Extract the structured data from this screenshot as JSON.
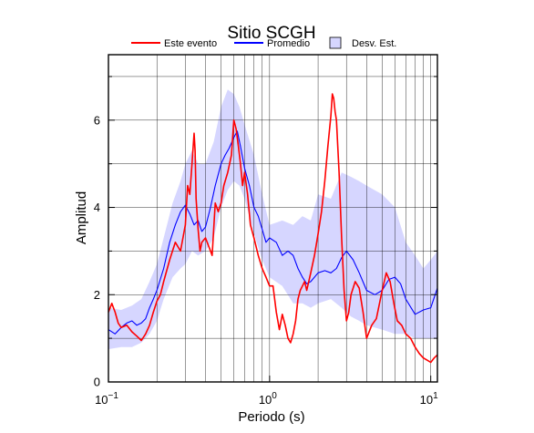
{
  "chart_data": {
    "type": "line",
    "title": "Sitio SCGH",
    "xlabel": "Periodo (s)",
    "ylabel": "Amplitud",
    "x_scale": "log",
    "xlim": [
      0.1,
      11
    ],
    "ylim": [
      0,
      7.5
    ],
    "x_ticks": [
      0.1,
      1,
      10
    ],
    "x_tick_labels": [
      {
        "base": "10",
        "exp": "−1"
      },
      {
        "base": "10",
        "exp": "0"
      },
      {
        "base": "10",
        "exp": "1"
      }
    ],
    "y_ticks": [
      0,
      2,
      4,
      6
    ],
    "y_tick_labels": [
      "0",
      "2",
      "4",
      "6"
    ],
    "grid": true,
    "legend_position": "top",
    "legend": [
      {
        "label": "Este evento",
        "kind": "line",
        "color": "#ff0000"
      },
      {
        "label": "Promedio",
        "kind": "line",
        "color": "#0000ff"
      },
      {
        "label": "Desv. Est.",
        "kind": "patch",
        "color": "#d6d6ff"
      }
    ],
    "band": {
      "name": "Desv. Est.",
      "color": "#d6d6ff",
      "x": [
        0.1,
        0.12,
        0.14,
        0.16,
        0.18,
        0.2,
        0.22,
        0.25,
        0.28,
        0.3,
        0.33,
        0.36,
        0.4,
        0.45,
        0.5,
        0.55,
        0.6,
        0.65,
        0.7,
        0.8,
        0.9,
        1.0,
        1.2,
        1.4,
        1.6,
        1.8,
        2.0,
        2.4,
        2.8,
        3.2,
        3.6,
        4.0,
        5.0,
        6.0,
        7.0,
        8.0,
        9.0,
        10.0,
        11.0
      ],
      "upper": [
        1.7,
        1.65,
        1.75,
        1.9,
        2.3,
        2.7,
        3.3,
        4.1,
        4.6,
        5.0,
        5.3,
        5.0,
        5.0,
        5.5,
        6.3,
        6.7,
        6.6,
        6.3,
        5.9,
        5.2,
        4.3,
        3.6,
        3.7,
        3.6,
        3.8,
        3.7,
        4.3,
        4.2,
        4.8,
        4.7,
        4.6,
        4.5,
        4.3,
        4.0,
        3.2,
        2.9,
        2.6,
        2.8,
        3.0
      ],
      "lower": [
        0.75,
        0.8,
        0.8,
        0.9,
        1.1,
        1.4,
        1.9,
        2.4,
        2.6,
        2.7,
        3.0,
        2.9,
        3.0,
        3.3,
        4.0,
        4.4,
        4.6,
        4.5,
        4.2,
        3.4,
        2.8,
        2.4,
        2.2,
        1.8,
        1.8,
        1.7,
        1.8,
        1.9,
        1.7,
        1.5,
        1.4,
        1.3,
        1.2,
        1.1,
        1.1,
        1.0,
        1.0,
        1.0,
        1.0
      ]
    },
    "series": [
      {
        "name": "Promedio",
        "color": "#0000ff",
        "x": [
          0.1,
          0.11,
          0.12,
          0.13,
          0.14,
          0.15,
          0.16,
          0.17,
          0.18,
          0.19,
          0.2,
          0.22,
          0.24,
          0.26,
          0.28,
          0.3,
          0.32,
          0.34,
          0.36,
          0.38,
          0.4,
          0.43,
          0.46,
          0.5,
          0.53,
          0.56,
          0.6,
          0.63,
          0.66,
          0.7,
          0.75,
          0.8,
          0.85,
          0.9,
          0.95,
          1.0,
          1.1,
          1.2,
          1.3,
          1.4,
          1.5,
          1.6,
          1.7,
          1.8,
          2.0,
          2.2,
          2.4,
          2.6,
          2.8,
          3.0,
          3.3,
          3.6,
          4.0,
          4.5,
          5.0,
          5.5,
          6.0,
          6.5,
          7.0,
          8.0,
          9.0,
          10.0,
          11.0
        ],
        "y": [
          1.2,
          1.1,
          1.25,
          1.35,
          1.4,
          1.3,
          1.35,
          1.45,
          1.7,
          1.9,
          2.1,
          2.6,
          3.2,
          3.6,
          3.9,
          4.05,
          3.85,
          3.6,
          3.7,
          3.45,
          3.55,
          4.0,
          4.5,
          5.0,
          5.2,
          5.35,
          5.6,
          5.75,
          5.4,
          4.9,
          4.5,
          4.0,
          3.8,
          3.5,
          3.2,
          3.3,
          3.2,
          2.9,
          3.0,
          2.9,
          2.6,
          2.4,
          2.25,
          2.3,
          2.5,
          2.55,
          2.5,
          2.6,
          2.85,
          3.0,
          2.8,
          2.5,
          2.1,
          2.0,
          2.1,
          2.35,
          2.4,
          2.25,
          1.9,
          1.55,
          1.65,
          1.7,
          2.15
        ]
      },
      {
        "name": "Este evento",
        "color": "#ff0000",
        "x": [
          0.1,
          0.105,
          0.11,
          0.115,
          0.12,
          0.13,
          0.14,
          0.15,
          0.16,
          0.17,
          0.18,
          0.19,
          0.2,
          0.21,
          0.22,
          0.24,
          0.26,
          0.28,
          0.3,
          0.31,
          0.32,
          0.33,
          0.34,
          0.345,
          0.35,
          0.36,
          0.37,
          0.38,
          0.4,
          0.42,
          0.44,
          0.46,
          0.48,
          0.5,
          0.52,
          0.55,
          0.58,
          0.6,
          0.62,
          0.64,
          0.66,
          0.68,
          0.7,
          0.73,
          0.76,
          0.8,
          0.85,
          0.9,
          0.95,
          1.0,
          1.05,
          1.1,
          1.15,
          1.2,
          1.25,
          1.3,
          1.35,
          1.4,
          1.45,
          1.5,
          1.55,
          1.6,
          1.65,
          1.7,
          1.8,
          1.9,
          2.0,
          2.1,
          2.2,
          2.3,
          2.4,
          2.45,
          2.5,
          2.55,
          2.6,
          2.7,
          2.8,
          2.9,
          3.0,
          3.1,
          3.2,
          3.4,
          3.6,
          3.8,
          4.0,
          4.3,
          4.6,
          5.0,
          5.3,
          5.6,
          5.9,
          6.2,
          6.6,
          7.0,
          7.5,
          8.0,
          8.5,
          9.0,
          9.5,
          10.0,
          10.5,
          11.0
        ],
        "y": [
          1.6,
          1.8,
          1.6,
          1.35,
          1.25,
          1.3,
          1.15,
          1.05,
          0.95,
          1.1,
          1.3,
          1.6,
          1.85,
          2.0,
          2.3,
          2.8,
          3.2,
          3.0,
          3.6,
          4.5,
          4.3,
          5.0,
          5.7,
          5.3,
          4.2,
          3.5,
          3.0,
          3.2,
          3.3,
          3.1,
          2.9,
          4.1,
          3.9,
          4.1,
          4.5,
          4.8,
          5.2,
          6.0,
          5.8,
          5.4,
          5.0,
          4.5,
          4.8,
          4.3,
          3.6,
          3.3,
          2.9,
          2.6,
          2.4,
          2.2,
          2.2,
          1.6,
          1.2,
          1.55,
          1.3,
          1.0,
          0.9,
          1.1,
          1.4,
          1.9,
          2.1,
          2.2,
          2.3,
          2.1,
          2.5,
          2.9,
          3.4,
          3.9,
          4.6,
          5.4,
          6.1,
          6.6,
          6.5,
          6.2,
          6.0,
          4.8,
          3.3,
          2.1,
          1.4,
          1.6,
          2.0,
          2.3,
          2.15,
          1.6,
          1.0,
          1.3,
          1.45,
          2.1,
          2.5,
          2.3,
          1.8,
          1.4,
          1.3,
          1.1,
          1.0,
          0.8,
          0.65,
          0.55,
          0.5,
          0.45,
          0.55,
          0.62
        ]
      }
    ]
  }
}
